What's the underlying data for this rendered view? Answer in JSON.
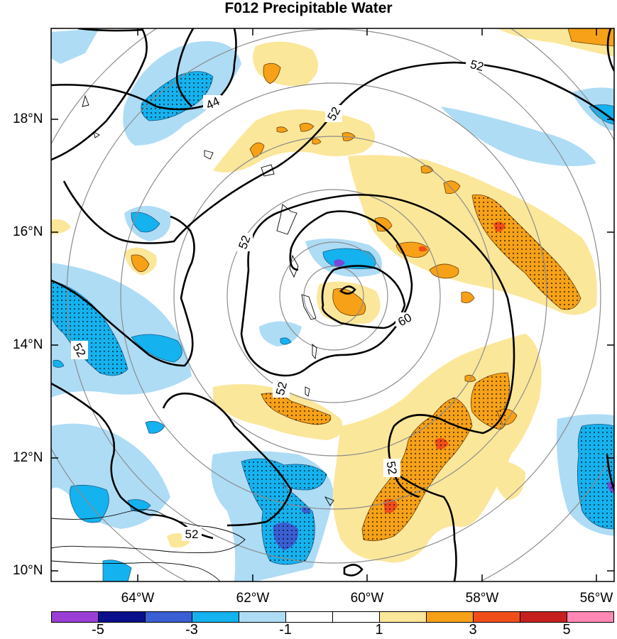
{
  "title": "F012 Precipitable Water",
  "axes": {
    "lat_labels": [
      "18°N",
      "16°N",
      "14°N",
      "12°N",
      "10°N"
    ],
    "lon_labels": [
      "64°W",
      "62°W",
      "60°W",
      "58°W",
      "56°W"
    ]
  },
  "contour_labels": {
    "c44": "44",
    "c52a": "52",
    "c52b": "52",
    "c52c": "52",
    "c52d": "52",
    "c52e": "52",
    "c52f": "52",
    "c52g": "52",
    "c60": "60"
  },
  "colorbar": {
    "labels": [
      "-5",
      "-3",
      "-1",
      "1",
      "3",
      "5"
    ],
    "colors": [
      "#9a3fd6",
      "#0a108c",
      "#3a5ed3",
      "#14b2ee",
      "#aedcf5",
      "#ffffff",
      "#ffffff",
      "#fbe79a",
      "#f6a117",
      "#f04e19",
      "#c5201e",
      "#ff88b5"
    ]
  },
  "fill_colors": {
    "light_blue": "#aedcf5",
    "blue": "#14b2ee",
    "dark_blue": "#3a5ed3",
    "purple": "#7848d8",
    "yellow": "#fbe79a",
    "orange": "#f6a117",
    "red_orange": "#f04e19"
  }
}
